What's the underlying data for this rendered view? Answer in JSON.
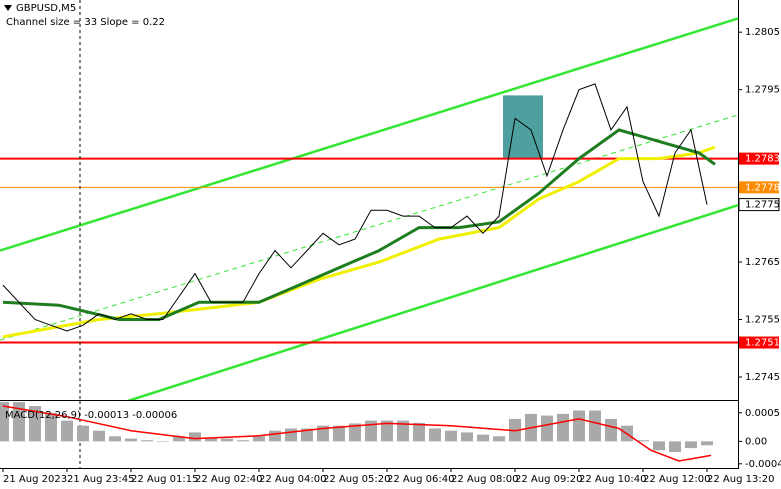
{
  "chart_data": {
    "type": "line",
    "title": "GBPUSD,M5",
    "subtitle": "Channel size = 33 Slope = 0.22",
    "xlim": [
      -0.75,
      183.75
    ],
    "xticks": [
      {
        "value": 0,
        "label": "21 Aug 2023"
      },
      {
        "value": 16,
        "label": "21 Aug 23:45"
      },
      {
        "value": 32,
        "label": "22 Aug 01:15"
      },
      {
        "value": 48,
        "label": "22 Aug 02:40"
      },
      {
        "value": 64,
        "label": "22 Aug 04:00"
      },
      {
        "value": 80,
        "label": "22 Aug 05:20"
      },
      {
        "value": 96,
        "label": "22 Aug 06:40"
      },
      {
        "value": 112,
        "label": "22 Aug 08:00"
      },
      {
        "value": 128,
        "label": "22 Aug 09:20"
      },
      {
        "value": 144,
        "label": "22 Aug 10:40"
      },
      {
        "value": 160,
        "label": "22 Aug 12:00"
      },
      {
        "value": 176,
        "label": "22 Aug 13:20"
      }
    ],
    "ylim": [
      1.2741,
      1.28106
    ],
    "yticks": [
      1.2805,
      1.2795,
      1.2765,
      1.2755,
      1.2745
    ],
    "series": [
      {
        "color": "#000000",
        "x": [
          0,
          4,
          8,
          12,
          16,
          20,
          24,
          28,
          32,
          36,
          40,
          44,
          48,
          52,
          56,
          60,
          64,
          68,
          72,
          76,
          80,
          84,
          88,
          92,
          96,
          100,
          104,
          108,
          112,
          116,
          120,
          124,
          128,
          132,
          136,
          140,
          144,
          148,
          152,
          156,
          160,
          164,
          168,
          172,
          176
        ],
        "values": [
          1.2761,
          1.2758,
          1.2755,
          1.2754,
          1.2753,
          1.2754,
          1.2756,
          1.2755,
          1.2756,
          1.2755,
          1.2755,
          1.2759,
          1.2763,
          1.2758,
          1.2758,
          1.2758,
          1.2763,
          1.2767,
          1.2764,
          1.2767,
          1.277,
          1.2768,
          1.2769,
          1.2774,
          1.2774,
          1.2773,
          1.2773,
          1.2771,
          1.2771,
          1.2773,
          1.277,
          1.2773,
          1.279,
          1.2788,
          1.278,
          1.2788,
          1.2795,
          1.2796,
          1.2788,
          1.2792,
          1.2779,
          1.2773,
          1.2784,
          1.2788,
          1.2775
        ]
      },
      {
        "color": "#1e7d1e",
        "x": [
          0,
          14,
          29,
          39,
          49,
          64,
          74,
          84,
          94,
          104,
          114,
          124,
          134,
          144,
          154,
          164,
          174,
          178
        ],
        "values": [
          1.2758,
          1.27575,
          1.2755,
          1.2755,
          1.2758,
          1.2758,
          1.2761,
          1.2764,
          1.2767,
          1.2771,
          1.2771,
          1.2772,
          1.2777,
          1.2783,
          1.2788,
          1.2786,
          1.2784,
          1.2782
        ]
      },
      {
        "color": "#f0f000",
        "x": [
          0,
          24,
          39,
          64,
          79,
          94,
          109,
          124,
          134,
          144,
          154,
          164,
          174,
          178
        ],
        "values": [
          1.2752,
          1.2755,
          1.2756,
          1.2758,
          1.2762,
          1.2765,
          1.2769,
          1.2771,
          1.2776,
          1.2779,
          1.2783,
          1.2783,
          1.2784,
          1.2785
        ]
      }
    ],
    "channel": [
      {
        "color": "#33e633",
        "x": [
          -0.75,
          183.75
        ],
        "values": [
          1.2767,
          1.28074
        ]
      },
      {
        "color": "#33e633",
        "x": [
          -0.75,
          183.75
        ],
        "values": [
          1.27514,
          1.27906
        ]
      },
      {
        "color": "#33e633",
        "x": [
          -0.75,
          183.75
        ],
        "values": [
          1.27337,
          1.27749
        ]
      }
    ],
    "levels": [
      {
        "value": 1.2783,
        "color": "#ff0000"
      },
      {
        "value": 1.2778,
        "color": "#ff8c00"
      },
      {
        "value": 1.2751,
        "color": "#ff0000"
      }
    ],
    "current_price": 1.2775,
    "highlight": {
      "x": [
        125,
        135
      ],
      "values": [
        1.2783,
        1.2794
      ],
      "color": "#2f8f8f"
    },
    "vline": 19.25,
    "macd": {
      "type": "bar",
      "title": "MACD(12,26,9) -0.00013 -0.00006",
      "ylim": [
        -0.000475,
        0.00072
      ],
      "yticks": [
        0.00051,
        {
          "value": 0,
          "label": "0.00"
        },
        -0.0004
      ],
      "histogram": {
        "color": "#a9a9a9",
        "x": [
          0,
          4,
          8,
          12,
          16,
          20,
          24,
          28,
          32,
          36,
          40,
          44,
          48,
          52,
          56,
          60,
          64,
          68,
          72,
          76,
          80,
          84,
          88,
          92,
          96,
          100,
          104,
          108,
          112,
          116,
          120,
          124,
          128,
          132,
          136,
          140,
          144,
          148,
          152,
          156,
          160,
          164,
          168,
          172,
          176
        ],
        "values": [
          0.0007,
          0.0007,
          0.00063,
          0.00051,
          0.00037,
          0.00028,
          0.00019,
          9e-05,
          5e-05,
          2e-05,
          0,
          9e-05,
          0.00016,
          7e-05,
          5e-05,
          2e-05,
          9e-05,
          0.00019,
          0.00023,
          0.00023,
          0.00028,
          0.00028,
          0.00032,
          0.00037,
          0.00037,
          0.00037,
          0.00033,
          0.00023,
          0.00019,
          0.00016,
          0.00012,
          9e-05,
          0.0004,
          0.00049,
          0.00046,
          0.00049,
          0.00055,
          0.00055,
          0.0004,
          0.00028,
          2e-05,
          -0.00016,
          -0.00019,
          -0.00012,
          -7e-05
        ]
      },
      "signal": {
        "color": "#ff0000",
        "x": [
          0,
          16,
          32,
          48,
          64,
          80,
          96,
          112,
          128,
          144,
          154,
          162,
          169,
          177
        ],
        "values": [
          0.00063,
          0.00044,
          0.00019,
          5e-05,
          0.0001,
          0.00023,
          0.00032,
          0.00028,
          0.00019,
          0.0004,
          0.00023,
          -0.00016,
          -0.00035,
          -0.00025
        ]
      }
    }
  }
}
